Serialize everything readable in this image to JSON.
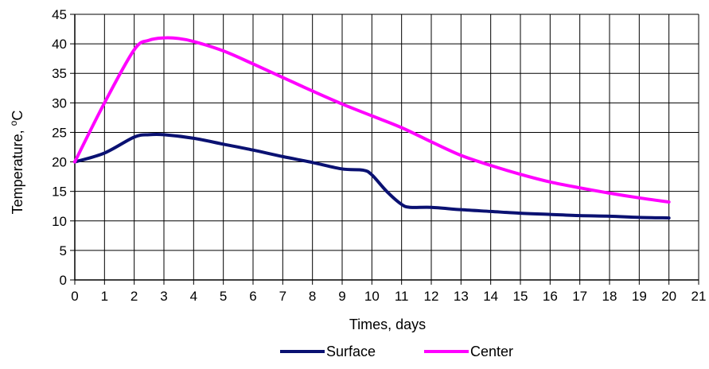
{
  "chart_data": {
    "type": "line",
    "title": "",
    "xlabel": "Times, days",
    "ylabel_main": "Temperature, ",
    "ylabel_sup": "o",
    "ylabel_unit": "C",
    "xlim": [
      0,
      21
    ],
    "ylim": [
      0,
      45
    ],
    "xticks": [
      0,
      1,
      2,
      3,
      4,
      5,
      6,
      7,
      8,
      9,
      10,
      11,
      12,
      13,
      14,
      15,
      16,
      17,
      18,
      19,
      20,
      21
    ],
    "yticks": [
      0,
      5,
      10,
      15,
      20,
      25,
      30,
      35,
      40,
      45
    ],
    "grid": true,
    "legend_position": "bottom",
    "series": [
      {
        "name": "Surface",
        "color": "#0a1172",
        "x": [
          0,
          1,
          2,
          2.5,
          3,
          4,
          5,
          6,
          7,
          8,
          9,
          9.7,
          10,
          10.5,
          11,
          11.3,
          12,
          13,
          14,
          15,
          16,
          17,
          18,
          19,
          20
        ],
        "y": [
          20,
          21.5,
          24.2,
          24.6,
          24.6,
          24,
          23,
          22,
          20.9,
          19.9,
          18.8,
          18.6,
          17.8,
          15,
          12.8,
          12.3,
          12.3,
          11.9,
          11.6,
          11.3,
          11.1,
          10.9,
          10.8,
          10.6,
          10.5
        ]
      },
      {
        "name": "Center",
        "color": "#ff00ff",
        "x": [
          0,
          1,
          2,
          2.5,
          3,
          3.5,
          4,
          5,
          6,
          7,
          8,
          9,
          10,
          11,
          12,
          13,
          14,
          15,
          16,
          17,
          18,
          19,
          20
        ],
        "y": [
          20,
          30,
          39,
          40.6,
          41,
          40.9,
          40.4,
          38.8,
          36.6,
          34.3,
          32,
          29.8,
          27.8,
          25.8,
          23.4,
          21.1,
          19.4,
          17.9,
          16.6,
          15.6,
          14.7,
          13.9,
          13.2
        ]
      }
    ]
  }
}
